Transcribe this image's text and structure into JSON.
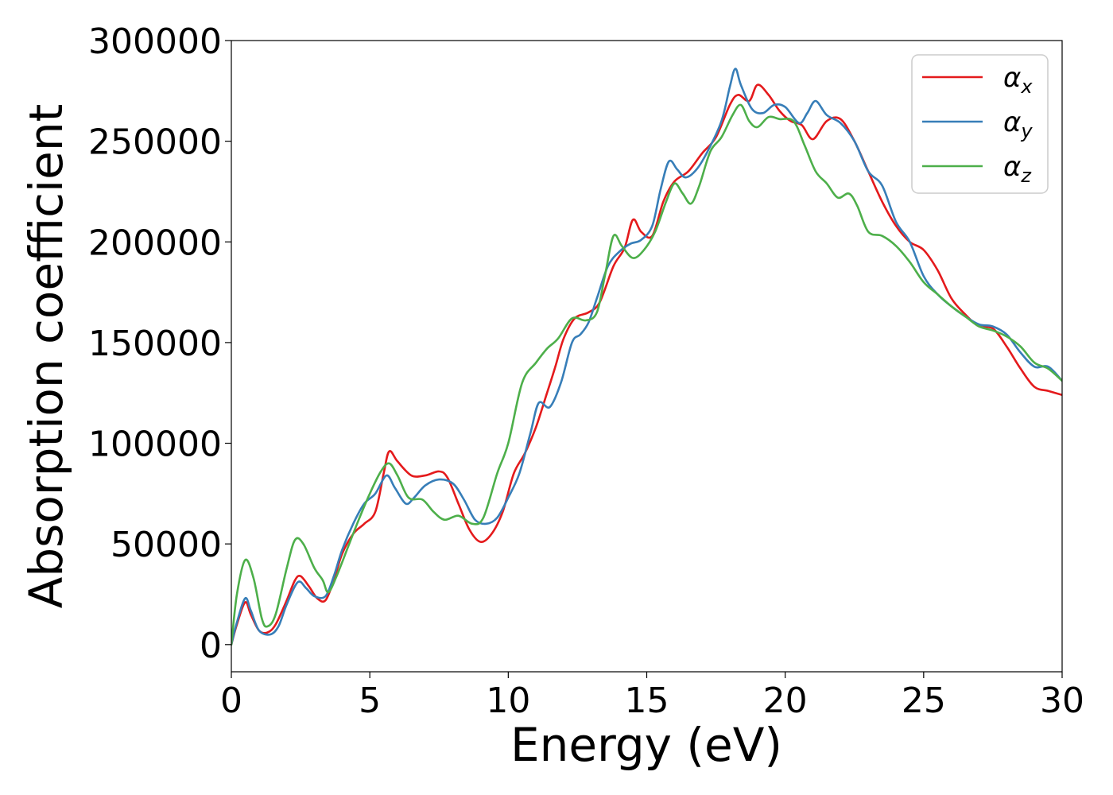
{
  "chart_data": {
    "type": "line",
    "title": "",
    "xlabel": "Energy (eV)",
    "ylabel": "Absorption coefficient",
    "xlim": [
      0,
      30
    ],
    "ylim": [
      -13500,
      300000
    ],
    "xticks": [
      0,
      5,
      10,
      15,
      20,
      25,
      30
    ],
    "yticks": [
      0,
      50000,
      100000,
      150000,
      200000,
      250000,
      300000
    ],
    "grid": false,
    "legend_position": "upper right",
    "series": [
      {
        "name": "α",
        "subscript": "x",
        "color": "#e41a1c",
        "points": [
          [
            0,
            0
          ],
          [
            0.2,
            10000
          ],
          [
            0.5,
            21000
          ],
          [
            0.7,
            15000
          ],
          [
            1.0,
            7000
          ],
          [
            1.3,
            6000
          ],
          [
            1.6,
            10000
          ],
          [
            2.0,
            22000
          ],
          [
            2.3,
            32000
          ],
          [
            2.5,
            34000
          ],
          [
            2.8,
            29000
          ],
          [
            3.1,
            23000
          ],
          [
            3.4,
            22000
          ],
          [
            3.7,
            32000
          ],
          [
            4.0,
            45000
          ],
          [
            4.4,
            55000
          ],
          [
            4.8,
            60000
          ],
          [
            5.2,
            66000
          ],
          [
            5.5,
            85000
          ],
          [
            5.7,
            96000
          ],
          [
            6.0,
            91000
          ],
          [
            6.5,
            84000
          ],
          [
            7.0,
            84000
          ],
          [
            7.5,
            86000
          ],
          [
            7.8,
            83000
          ],
          [
            8.2,
            70000
          ],
          [
            8.6,
            57000
          ],
          [
            9.0,
            51000
          ],
          [
            9.4,
            55000
          ],
          [
            9.8,
            66000
          ],
          [
            10.2,
            85000
          ],
          [
            10.6,
            95000
          ],
          [
            11.0,
            108000
          ],
          [
            11.4,
            125000
          ],
          [
            11.7,
            138000
          ],
          [
            12.0,
            152000
          ],
          [
            12.4,
            162000
          ],
          [
            12.9,
            165000
          ],
          [
            13.3,
            170000
          ],
          [
            13.8,
            188000
          ],
          [
            14.2,
            197000
          ],
          [
            14.5,
            211000
          ],
          [
            14.8,
            205000
          ],
          [
            15.2,
            203000
          ],
          [
            15.6,
            220000
          ],
          [
            16.0,
            230000
          ],
          [
            16.5,
            235000
          ],
          [
            17.0,
            244000
          ],
          [
            17.5,
            252000
          ],
          [
            18.0,
            268000
          ],
          [
            18.3,
            273000
          ],
          [
            18.7,
            270000
          ],
          [
            19.0,
            278000
          ],
          [
            19.4,
            273000
          ],
          [
            19.8,
            265000
          ],
          [
            20.2,
            260000
          ],
          [
            20.6,
            258000
          ],
          [
            21.0,
            251000
          ],
          [
            21.5,
            260000
          ],
          [
            22.0,
            261000
          ],
          [
            22.5,
            250000
          ],
          [
            23.0,
            235000
          ],
          [
            23.5,
            220000
          ],
          [
            24.0,
            208000
          ],
          [
            24.5,
            200000
          ],
          [
            25.0,
            196000
          ],
          [
            25.5,
            186000
          ],
          [
            26.0,
            172000
          ],
          [
            26.5,
            164000
          ],
          [
            27.0,
            158000
          ],
          [
            27.5,
            157000
          ],
          [
            28.0,
            148000
          ],
          [
            28.5,
            137000
          ],
          [
            29.0,
            128000
          ],
          [
            29.5,
            126000
          ],
          [
            30.0,
            124000
          ]
        ]
      },
      {
        "name": "α",
        "subscript": "y",
        "color": "#377eb8",
        "points": [
          [
            0,
            0
          ],
          [
            0.2,
            11000
          ],
          [
            0.5,
            23000
          ],
          [
            0.7,
            17000
          ],
          [
            1.0,
            7000
          ],
          [
            1.4,
            5000
          ],
          [
            1.7,
            9000
          ],
          [
            2.0,
            20000
          ],
          [
            2.4,
            31000
          ],
          [
            2.7,
            28000
          ],
          [
            3.0,
            24000
          ],
          [
            3.4,
            24000
          ],
          [
            3.7,
            34000
          ],
          [
            4.0,
            47000
          ],
          [
            4.4,
            60000
          ],
          [
            4.8,
            70000
          ],
          [
            5.2,
            75000
          ],
          [
            5.6,
            84000
          ],
          [
            5.9,
            78000
          ],
          [
            6.3,
            70000
          ],
          [
            6.6,
            73000
          ],
          [
            7.0,
            79000
          ],
          [
            7.5,
            82000
          ],
          [
            8.0,
            80000
          ],
          [
            8.4,
            72000
          ],
          [
            8.8,
            62000
          ],
          [
            9.2,
            60000
          ],
          [
            9.6,
            63000
          ],
          [
            10.0,
            73000
          ],
          [
            10.4,
            85000
          ],
          [
            10.8,
            105000
          ],
          [
            11.1,
            120000
          ],
          [
            11.5,
            118000
          ],
          [
            11.9,
            130000
          ],
          [
            12.3,
            150000
          ],
          [
            12.6,
            154000
          ],
          [
            12.9,
            160000
          ],
          [
            13.2,
            172000
          ],
          [
            13.6,
            188000
          ],
          [
            14.0,
            195000
          ],
          [
            14.4,
            199000
          ],
          [
            14.8,
            201000
          ],
          [
            15.2,
            208000
          ],
          [
            15.5,
            226000
          ],
          [
            15.8,
            240000
          ],
          [
            16.1,
            236000
          ],
          [
            16.4,
            232000
          ],
          [
            16.8,
            236000
          ],
          [
            17.2,
            245000
          ],
          [
            17.7,
            260000
          ],
          [
            18.0,
            277000
          ],
          [
            18.2,
            286000
          ],
          [
            18.4,
            278000
          ],
          [
            18.8,
            266000
          ],
          [
            19.2,
            264000
          ],
          [
            19.6,
            268000
          ],
          [
            20.0,
            267000
          ],
          [
            20.5,
            259000
          ],
          [
            20.8,
            264000
          ],
          [
            21.1,
            270000
          ],
          [
            21.5,
            263000
          ],
          [
            22.0,
            259000
          ],
          [
            22.5,
            250000
          ],
          [
            23.0,
            235000
          ],
          [
            23.5,
            228000
          ],
          [
            24.0,
            210000
          ],
          [
            24.5,
            200000
          ],
          [
            25.0,
            183000
          ],
          [
            25.5,
            174000
          ],
          [
            26.0,
            168000
          ],
          [
            26.5,
            163000
          ],
          [
            27.0,
            159000
          ],
          [
            27.5,
            158000
          ],
          [
            28.0,
            154000
          ],
          [
            28.5,
            145000
          ],
          [
            29.0,
            138000
          ],
          [
            29.5,
            138000
          ],
          [
            30.0,
            131000
          ]
        ]
      },
      {
        "name": "α",
        "subscript": "z",
        "color": "#4daf4a",
        "points": [
          [
            0,
            0
          ],
          [
            0.2,
            25000
          ],
          [
            0.5,
            42000
          ],
          [
            0.8,
            33000
          ],
          [
            1.1,
            13000
          ],
          [
            1.3,
            9000
          ],
          [
            1.6,
            15000
          ],
          [
            2.0,
            38000
          ],
          [
            2.3,
            52000
          ],
          [
            2.6,
            50000
          ],
          [
            3.0,
            38000
          ],
          [
            3.3,
            32000
          ],
          [
            3.5,
            26000
          ],
          [
            3.8,
            34000
          ],
          [
            4.2,
            48000
          ],
          [
            4.6,
            62000
          ],
          [
            5.0,
            75000
          ],
          [
            5.4,
            86000
          ],
          [
            5.7,
            90000
          ],
          [
            6.0,
            84000
          ],
          [
            6.4,
            73000
          ],
          [
            6.9,
            72000
          ],
          [
            7.3,
            66000
          ],
          [
            7.7,
            62000
          ],
          [
            8.2,
            64000
          ],
          [
            8.7,
            60000
          ],
          [
            9.1,
            63000
          ],
          [
            9.6,
            85000
          ],
          [
            10.0,
            100000
          ],
          [
            10.5,
            130000
          ],
          [
            11.0,
            140000
          ],
          [
            11.4,
            147000
          ],
          [
            11.8,
            152000
          ],
          [
            12.3,
            162000
          ],
          [
            12.8,
            161000
          ],
          [
            13.2,
            165000
          ],
          [
            13.5,
            184000
          ],
          [
            13.8,
            203000
          ],
          [
            14.1,
            198000
          ],
          [
            14.5,
            192000
          ],
          [
            14.9,
            196000
          ],
          [
            15.3,
            205000
          ],
          [
            15.7,
            220000
          ],
          [
            16.0,
            229000
          ],
          [
            16.3,
            224000
          ],
          [
            16.6,
            219000
          ],
          [
            16.9,
            228000
          ],
          [
            17.3,
            245000
          ],
          [
            17.7,
            252000
          ],
          [
            18.1,
            263000
          ],
          [
            18.4,
            268000
          ],
          [
            18.7,
            260000
          ],
          [
            19.0,
            257000
          ],
          [
            19.4,
            262000
          ],
          [
            19.8,
            261000
          ],
          [
            20.3,
            260000
          ],
          [
            20.7,
            248000
          ],
          [
            21.1,
            235000
          ],
          [
            21.5,
            229000
          ],
          [
            21.9,
            222000
          ],
          [
            22.3,
            224000
          ],
          [
            22.6,
            218000
          ],
          [
            23.0,
            205000
          ],
          [
            23.5,
            203000
          ],
          [
            24.0,
            198000
          ],
          [
            24.5,
            190000
          ],
          [
            25.0,
            180000
          ],
          [
            25.5,
            174000
          ],
          [
            26.0,
            168000
          ],
          [
            26.5,
            163000
          ],
          [
            27.0,
            158000
          ],
          [
            27.5,
            156000
          ],
          [
            28.0,
            153000
          ],
          [
            28.5,
            148000
          ],
          [
            29.0,
            140000
          ],
          [
            29.5,
            137000
          ],
          [
            30.0,
            131000
          ]
        ]
      }
    ]
  }
}
